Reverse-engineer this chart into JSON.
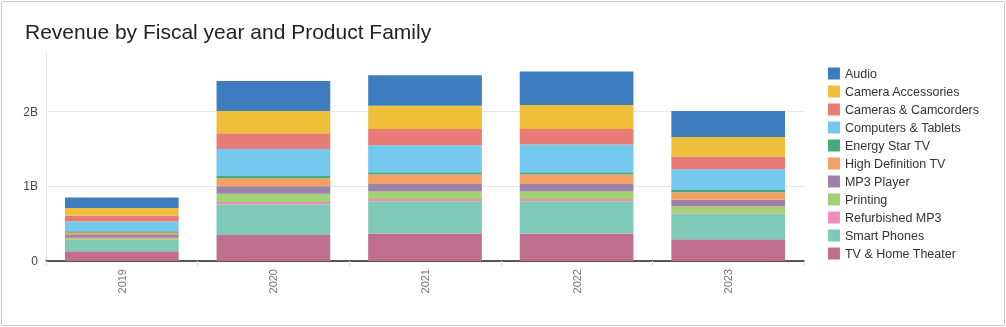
{
  "chart_data": {
    "type": "bar",
    "title": "Revenue by Fiscal year and Product Family",
    "stacked": true,
    "grid": "y",
    "legend": "right",
    "categories": [
      "2019",
      "2020",
      "2021",
      "2022",
      "2023"
    ],
    "ylim": [
      0,
      2.8
    ],
    "yticks": [
      {
        "value": 0,
        "label": "0"
      },
      {
        "value": 1,
        "label": "1B"
      },
      {
        "value": 2,
        "label": "2B"
      }
    ],
    "series": [
      {
        "name": "TV & Home Theater",
        "color": "#c0708c",
        "values": [
          0.13,
          0.35,
          0.37,
          0.37,
          0.29
        ]
      },
      {
        "name": "Smart Phones",
        "color": "#7fc9b7",
        "values": [
          0.15,
          0.41,
          0.43,
          0.43,
          0.34
        ]
      },
      {
        "name": "Refurbished MP3",
        "color": "#ef8fb9",
        "values": [
          0.01,
          0.03,
          0.03,
          0.03,
          0.01
        ]
      },
      {
        "name": "Printing",
        "color": "#a1d173",
        "values": [
          0.02,
          0.11,
          0.1,
          0.1,
          0.09
        ]
      },
      {
        "name": "MP3 Player",
        "color": "#9d81a8",
        "values": [
          0.04,
          0.1,
          0.1,
          0.1,
          0.09
        ]
      },
      {
        "name": "High Definition TV",
        "color": "#f2a064",
        "values": [
          0.03,
          0.11,
          0.13,
          0.13,
          0.1
        ]
      },
      {
        "name": "Energy Star TV",
        "color": "#47a97c",
        "values": [
          0.02,
          0.03,
          0.03,
          0.03,
          0.03
        ]
      },
      {
        "name": "Computers & Tablets",
        "color": "#75c9ee",
        "values": [
          0.13,
          0.36,
          0.36,
          0.37,
          0.28
        ]
      },
      {
        "name": "Cameras & Camcorders",
        "color": "#e97b77",
        "values": [
          0.08,
          0.21,
          0.22,
          0.21,
          0.17
        ]
      },
      {
        "name": "Camera Accessories",
        "color": "#efbf3a",
        "values": [
          0.1,
          0.3,
          0.31,
          0.32,
          0.26
        ]
      },
      {
        "name": "Audio",
        "color": "#3d7dbf",
        "values": [
          0.14,
          0.4,
          0.41,
          0.45,
          0.35
        ]
      }
    ]
  }
}
